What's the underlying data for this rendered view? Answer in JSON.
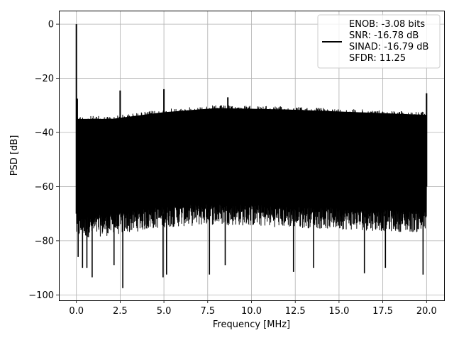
{
  "chart_data": {
    "type": "line",
    "title": "",
    "xlabel": "Frequency [MHz]",
    "ylabel": "PSD [dB]",
    "xlim": [
      -1.0,
      21.0
    ],
    "ylim": [
      -102.0,
      5.0
    ],
    "grid": true,
    "legend_placement": "upper-right",
    "series_color": "#000000",
    "x_ticks": [
      {
        "value": 0.0,
        "label": "0.0"
      },
      {
        "value": 2.5,
        "label": "2.5"
      },
      {
        "value": 5.0,
        "label": "5.0"
      },
      {
        "value": 7.5,
        "label": "7.5"
      },
      {
        "value": 10.0,
        "label": "10.0"
      },
      {
        "value": 12.5,
        "label": "12.5"
      },
      {
        "value": 15.0,
        "label": "15.0"
      },
      {
        "value": 17.5,
        "label": "17.5"
      },
      {
        "value": 20.0,
        "label": "20.0"
      }
    ],
    "y_ticks": [
      {
        "value": 0,
        "label": "0"
      },
      {
        "value": -20,
        "label": "−20"
      },
      {
        "value": -40,
        "label": "−40"
      },
      {
        "value": -60,
        "label": "−60"
      },
      {
        "value": -80,
        "label": "−80"
      },
      {
        "value": -100,
        "label": "−100"
      }
    ],
    "legend_lines": [
      "ENOB: -3.08 bits",
      "SNR: -16.78 dB",
      "SINAD: -16.79 dB",
      "SFDR: 11.25"
    ],
    "noise_band": {
      "x_start": 0.0,
      "x_end": 20.0,
      "upper_envelope": [
        {
          "x": 0.05,
          "y": -34
        },
        {
          "x": 2.0,
          "y": -34
        },
        {
          "x": 5.0,
          "y": -31.5
        },
        {
          "x": 8.0,
          "y": -30
        },
        {
          "x": 12.0,
          "y": -30.5
        },
        {
          "x": 16.0,
          "y": -31.5
        },
        {
          "x": 20.0,
          "y": -32.5
        }
      ],
      "lower_envelope": [
        {
          "x": 0.05,
          "y": -76
        },
        {
          "x": 2.0,
          "y": -75
        },
        {
          "x": 5.0,
          "y": -72
        },
        {
          "x": 8.0,
          "y": -71
        },
        {
          "x": 12.0,
          "y": -72
        },
        {
          "x": 16.0,
          "y": -73
        },
        {
          "x": 20.0,
          "y": -74
        }
      ]
    },
    "spikes_up": [
      {
        "x": 0.0,
        "y": 0.0
      },
      {
        "x": 0.05,
        "y": -27.5
      },
      {
        "x": 2.5,
        "y": -24.5
      },
      {
        "x": 5.0,
        "y": -24.0
      },
      {
        "x": 8.65,
        "y": -27.0
      },
      {
        "x": 20.0,
        "y": -25.5
      }
    ],
    "spikes_down": [
      {
        "x": 0.1,
        "y": -86.0
      },
      {
        "x": 0.35,
        "y": -90.0
      },
      {
        "x": 0.6,
        "y": -90.0
      },
      {
        "x": 0.9,
        "y": -93.5
      },
      {
        "x": 2.15,
        "y": -89.0
      },
      {
        "x": 2.65,
        "y": -97.5
      },
      {
        "x": 4.95,
        "y": -93.5
      },
      {
        "x": 5.15,
        "y": -92.5
      },
      {
        "x": 7.6,
        "y": -92.5
      },
      {
        "x": 8.5,
        "y": -89.0
      },
      {
        "x": 12.4,
        "y": -91.5
      },
      {
        "x": 13.55,
        "y": -90.0
      },
      {
        "x": 16.45,
        "y": -92.0
      },
      {
        "x": 17.65,
        "y": -90.0
      },
      {
        "x": 19.8,
        "y": -92.5
      }
    ]
  }
}
